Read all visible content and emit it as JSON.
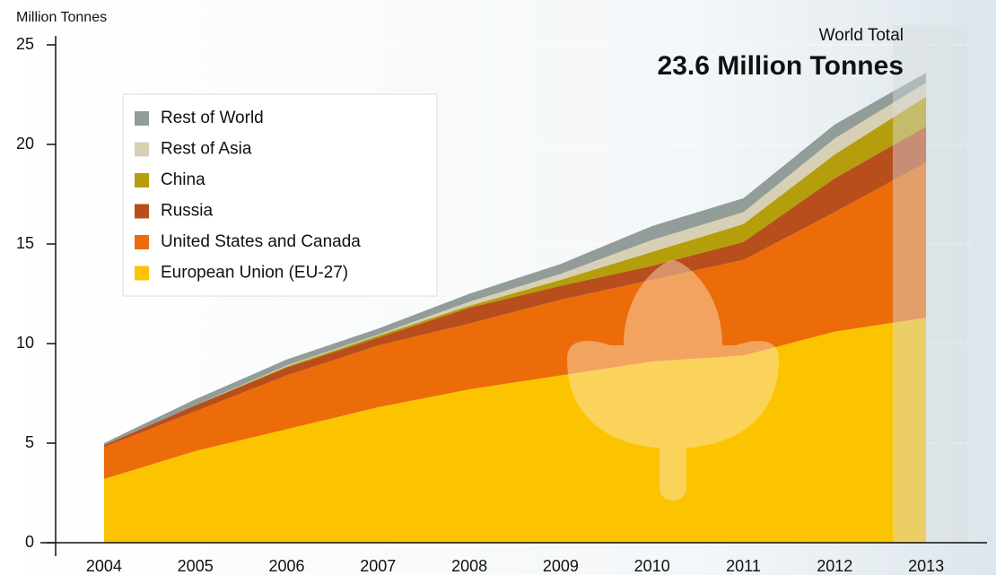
{
  "chart_data": {
    "type": "stacked_area",
    "y_axis_label": "Million Tonnes",
    "annotation_label": "World Total",
    "annotation_value": "23.6 Million Tonnes",
    "categories": [
      "2004",
      "2005",
      "2006",
      "2007",
      "2008",
      "2009",
      "2010",
      "2011",
      "2012",
      "2013"
    ],
    "series": [
      {
        "name": "European Union (EU-27)",
        "color": "#fcc400",
        "values": [
          3.2,
          4.6,
          5.7,
          6.8,
          7.7,
          8.4,
          9.1,
          9.4,
          10.6,
          11.3
        ]
      },
      {
        "name": "United States and Canada",
        "color": "#ec6c0a",
        "values": [
          1.6,
          2.0,
          2.7,
          3.1,
          3.3,
          3.8,
          4.1,
          4.8,
          6.0,
          7.8
        ]
      },
      {
        "name": "Russia",
        "color": "#b84e1c",
        "values": [
          0.1,
          0.3,
          0.4,
          0.4,
          0.8,
          0.7,
          0.7,
          0.9,
          1.7,
          1.8
        ]
      },
      {
        "name": "China",
        "color": "#b49e0c",
        "values": [
          0.0,
          0.0,
          0.05,
          0.1,
          0.1,
          0.3,
          0.7,
          0.9,
          1.2,
          1.5
        ]
      },
      {
        "name": "Rest of Asia",
        "color": "#d8d0b4",
        "values": [
          0.0,
          0.0,
          0.05,
          0.05,
          0.2,
          0.3,
          0.6,
          0.6,
          0.8,
          0.7
        ]
      },
      {
        "name": "Rest of World",
        "color": "#929c98",
        "values": [
          0.1,
          0.3,
          0.3,
          0.3,
          0.4,
          0.5,
          0.7,
          0.7,
          0.7,
          0.5
        ]
      }
    ],
    "ylim": [
      0,
      25
    ],
    "yticks": [
      0,
      5,
      10,
      15,
      20,
      25
    ],
    "legend": "upper left"
  }
}
